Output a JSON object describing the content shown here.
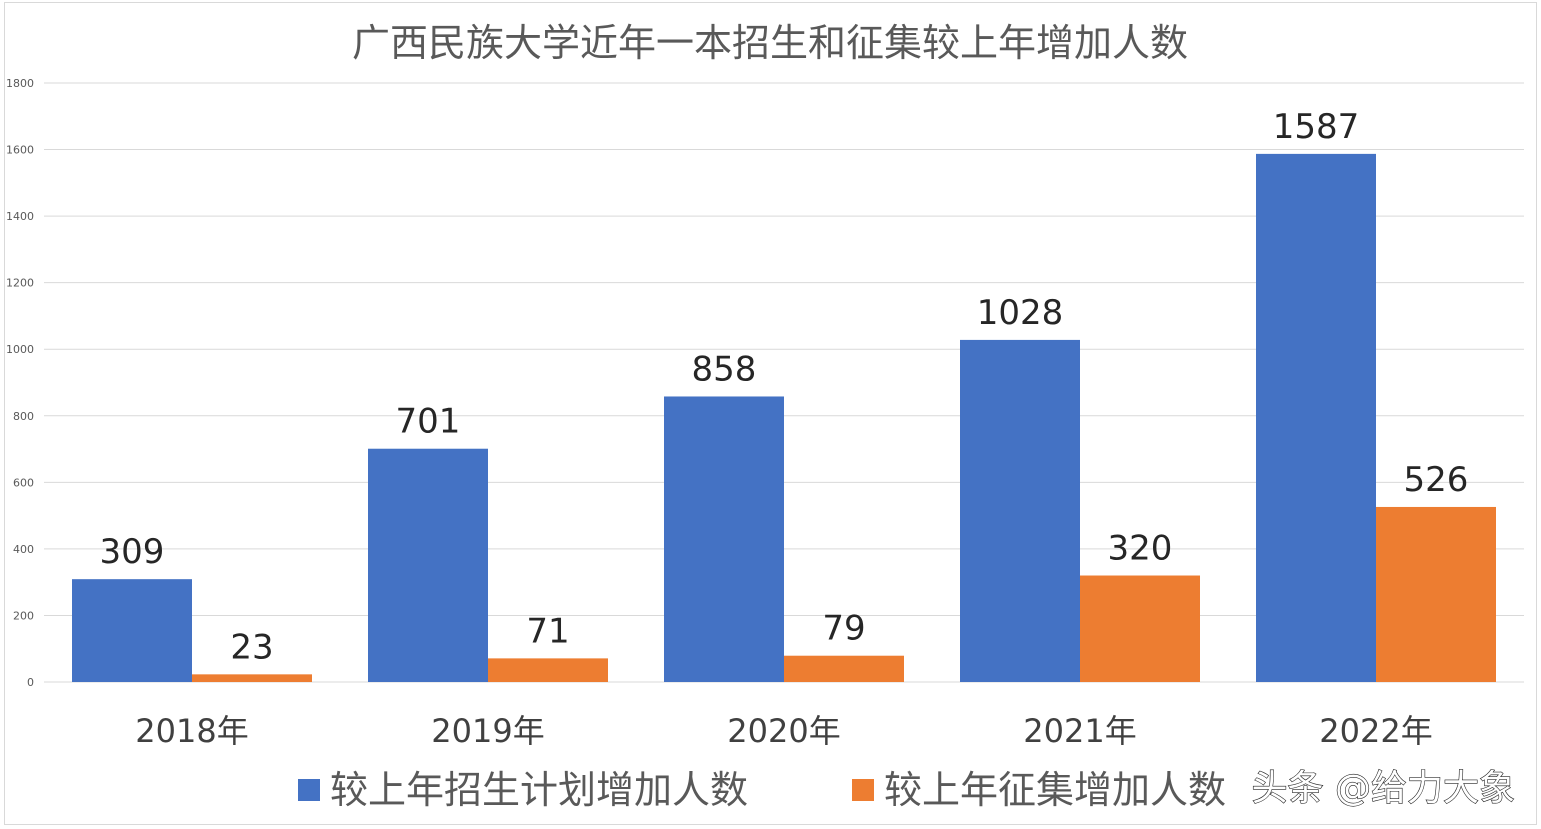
{
  "chart_data": {
    "type": "bar",
    "title": "广西民族大学近年一本招生和征集较上年增加人数",
    "categories": [
      "2018年",
      "2019年",
      "2020年",
      "2021年",
      "2022年"
    ],
    "series": [
      {
        "name": "较上年招生计划增加人数",
        "color": "#4472c4",
        "values": [
          309,
          701,
          858,
          1028,
          1587
        ]
      },
      {
        "name": "较上年征集增加人数",
        "color": "#ed7d31",
        "values": [
          23,
          71,
          79,
          320,
          526
        ]
      }
    ],
    "ylim": [
      0,
      1800
    ],
    "yticks": [
      0,
      200,
      400,
      600,
      800,
      1000,
      1200,
      1400,
      1600,
      1800
    ],
    "xlabel": "",
    "ylabel": "",
    "grid": true,
    "legend": "bottom"
  },
  "watermark": "头条 @给力大象"
}
